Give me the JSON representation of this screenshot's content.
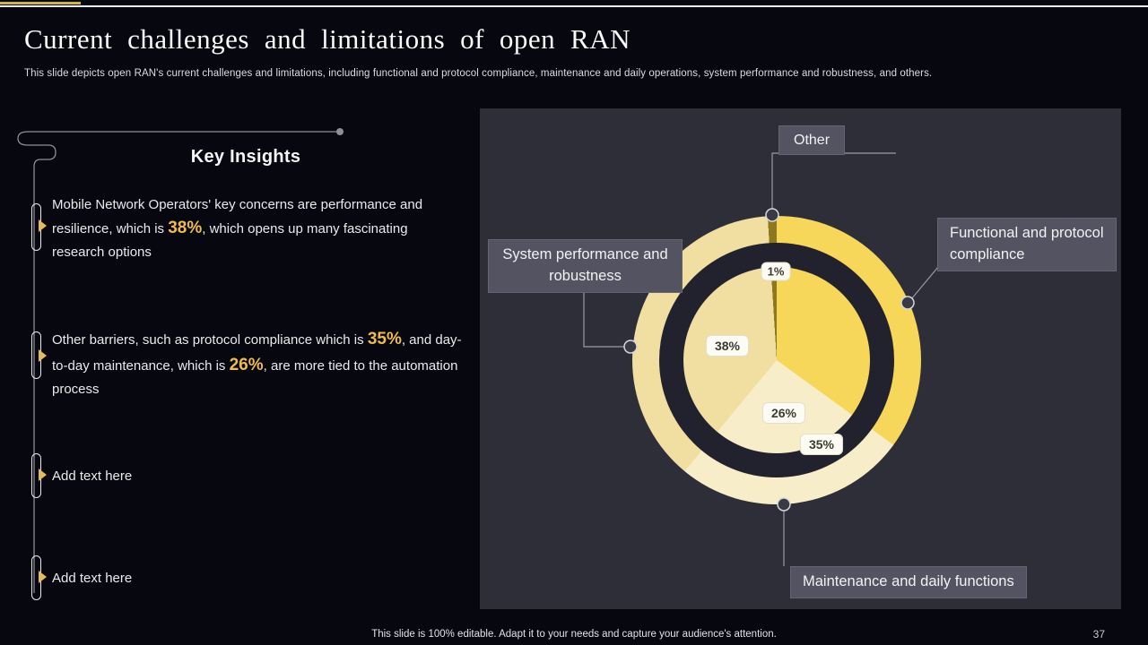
{
  "header": {
    "title": "Current challenges and limitations of open RAN",
    "subtitle": "This slide depicts open RAN's current challenges and limitations, including functional and protocol compliance, maintenance and daily operations, system performance and robustness, and others."
  },
  "key_insights": {
    "heading": "Key Insights",
    "items": [
      {
        "parts": [
          {
            "t": "Mobile Network Operators' key concerns are performance and resilience, which is "
          },
          {
            "t": "38%",
            "accent": true
          },
          {
            "t": ", which opens up many fascinating research options"
          }
        ]
      },
      {
        "parts": [
          {
            "t": "Other barriers, such as protocol compliance which is "
          },
          {
            "t": "35%",
            "accent": true
          },
          {
            "t": ", and day-to-day maintenance, which is "
          },
          {
            "t": "26%",
            "accent": true
          },
          {
            "t": ", are more tied to the automation process"
          }
        ]
      },
      {
        "parts": [
          {
            "t": "Add text here"
          }
        ]
      },
      {
        "parts": [
          {
            "t": "Add text here"
          }
        ]
      }
    ]
  },
  "chart_data": {
    "type": "pie",
    "style": "pie-with-detached-outer-ring",
    "start_angle_deg": 0,
    "direction": "clockwise",
    "legend_position": "callouts",
    "segments": [
      {
        "label": "Functional and protocol compliance",
        "value": 35,
        "pct_label": "35%",
        "color": "#F6D75A"
      },
      {
        "label": "Maintenance and daily functions",
        "value": 26,
        "pct_label": "26%",
        "color": "#F8EDC9"
      },
      {
        "label": "System performance and robustness",
        "value": 38,
        "pct_label": "38%",
        "color": "#F1DEA1"
      },
      {
        "label": "Other",
        "value": 1,
        "pct_label": "1%",
        "color": "#8D781F"
      }
    ],
    "colors": {
      "panel_background": "#2E2E39",
      "separator_ring": "#22222E",
      "callout_box": "#545361",
      "accent_gold_text": "#EFBB4C"
    }
  },
  "footer": {
    "note": "This slide is 100% editable. Adapt it to your needs and capture your audience's attention.",
    "page_number": "37"
  }
}
